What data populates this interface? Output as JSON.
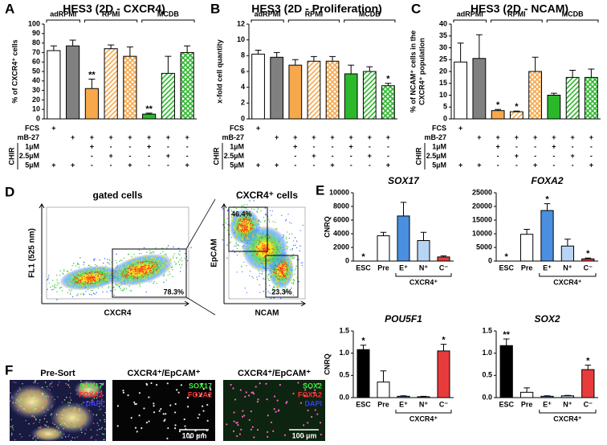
{
  "panel_labels": [
    "A",
    "B",
    "C",
    "D",
    "E",
    "F"
  ],
  "chart_data": [
    {
      "type": "bar",
      "title": "HES3 (2D - CXCR4)",
      "ylabel": [
        "% of CXCR4⁺ cells"
      ],
      "categories": [
        null,
        null,
        null,
        null,
        null,
        null,
        null,
        null
      ],
      "values": [
        72,
        77,
        32,
        74,
        66,
        5,
        48,
        70
      ],
      "errors": [
        5,
        6,
        10,
        4,
        10,
        1,
        18,
        7
      ],
      "significance": [
        null,
        null,
        "**",
        null,
        null,
        "**",
        null,
        null
      ],
      "colors": [
        "#ffffff",
        "#808080",
        "#f7a84a",
        "#f7a84a",
        "#f7a84a",
        "#2bb82b",
        "#2bb82b",
        "#2bb82b"
      ],
      "hatch": [
        null,
        null,
        null,
        "diagonal",
        "cross",
        null,
        "diagonal",
        "cross"
      ],
      "ylim": [
        0,
        100
      ],
      "yticks": [
        0,
        10,
        20,
        30,
        40,
        50,
        60,
        70,
        80,
        90,
        100
      ],
      "groups": [
        {
          "name": "adRPMI",
          "count": 2
        },
        {
          "name": "RPMI",
          "count": 3
        },
        {
          "name": "MCDB",
          "count": 3
        }
      ],
      "conditions": {
        "row_labels": [
          "FCS",
          "mB-27",
          "1µM",
          "2.5µM",
          "5µM"
        ],
        "group_label": "CHIR",
        "rows": [
          [
            "+",
            null,
            null,
            null,
            null,
            null,
            null,
            null
          ],
          [
            null,
            "+",
            "+",
            "+",
            "+",
            "+",
            "+",
            "+"
          ],
          [
            null,
            null,
            "+",
            "-",
            "-",
            "+",
            "-",
            "-"
          ],
          [
            null,
            null,
            "-",
            "+",
            "-",
            "-",
            "+",
            "-"
          ],
          [
            "+",
            "+",
            "-",
            "-",
            "+",
            "-",
            "-",
            "+"
          ]
        ]
      }
    },
    {
      "type": "bar",
      "title": "HES3 (2D - Proliferation)",
      "ylabel": [
        "x-fold cell quantity"
      ],
      "categories": [
        null,
        null,
        null,
        null,
        null,
        null,
        null,
        null
      ],
      "values": [
        8.2,
        7.8,
        6.8,
        7.3,
        7.3,
        5.7,
        6.0,
        4.2
      ],
      "errors": [
        0.5,
        0.6,
        0.7,
        0.6,
        0.6,
        1.1,
        0.6,
        0.3
      ],
      "significance": [
        null,
        null,
        null,
        null,
        null,
        null,
        null,
        "*"
      ],
      "colors": [
        "#ffffff",
        "#808080",
        "#f7a84a",
        "#f7a84a",
        "#f7a84a",
        "#2bb82b",
        "#2bb82b",
        "#2bb82b"
      ],
      "hatch": [
        null,
        null,
        null,
        "diagonal",
        "cross",
        null,
        "diagonal",
        "cross"
      ],
      "ylim": [
        0,
        12
      ],
      "yticks": [
        0,
        2,
        4,
        6,
        8,
        10,
        12
      ],
      "groups": [
        {
          "name": "adRPMI",
          "count": 2
        },
        {
          "name": "RPMI",
          "count": 3
        },
        {
          "name": "MCDB",
          "count": 3
        }
      ],
      "conditions": {
        "row_labels": [
          "FCS",
          "mB-27",
          "1µM",
          "2.5µM",
          "5µM"
        ],
        "group_label": "CHIR",
        "rows": [
          [
            "+",
            null,
            null,
            null,
            null,
            null,
            null,
            null
          ],
          [
            null,
            "+",
            "+",
            "+",
            "+",
            "+",
            "+",
            "+"
          ],
          [
            null,
            null,
            "+",
            "-",
            "-",
            "+",
            "-",
            "-"
          ],
          [
            null,
            null,
            "-",
            "+",
            "-",
            "-",
            "+",
            "-"
          ],
          [
            "+",
            "+",
            "-",
            "-",
            "+",
            "-",
            "-",
            "+"
          ]
        ]
      }
    },
    {
      "type": "bar",
      "title": "HES3 (2D - NCAM)",
      "ylabel": [
        "% of NCAM⁺ cells in the",
        "CXCR4⁺ population"
      ],
      "categories": [
        null,
        null,
        null,
        null,
        null,
        null,
        null,
        null
      ],
      "values": [
        24,
        25.5,
        3.5,
        3,
        20,
        10,
        17.5,
        17.5
      ],
      "errors": [
        8,
        10,
        0.5,
        0.3,
        6,
        0.8,
        3,
        3.5
      ],
      "significance": [
        null,
        null,
        "*",
        "*",
        null,
        null,
        null,
        null
      ],
      "colors": [
        "#ffffff",
        "#808080",
        "#f7a84a",
        "#f7a84a",
        "#f7a84a",
        "#2bb82b",
        "#2bb82b",
        "#2bb82b"
      ],
      "hatch": [
        null,
        null,
        null,
        "diagonal",
        "cross",
        null,
        "diagonal",
        "cross"
      ],
      "ylim": [
        0,
        40
      ],
      "yticks": [
        0,
        5,
        10,
        15,
        20,
        25,
        30,
        35,
        40
      ],
      "groups": [
        {
          "name": "adRPMI",
          "count": 2
        },
        {
          "name": "RPMI",
          "count": 3
        },
        {
          "name": "MCDB",
          "count": 3
        }
      ],
      "conditions": {
        "row_labels": [
          "FCS",
          "mB-27",
          "1µM",
          "2.5µM",
          "5µM"
        ],
        "group_label": "CHIR",
        "rows": [
          [
            "+",
            null,
            null,
            null,
            null,
            null,
            null,
            null
          ],
          [
            null,
            "+",
            "+",
            "+",
            "+",
            "+",
            "+",
            "+"
          ],
          [
            null,
            null,
            "+",
            "-",
            "-",
            "+",
            "-",
            "-"
          ],
          [
            null,
            null,
            "-",
            "+",
            "-",
            "-",
            "+",
            "-"
          ],
          [
            "+",
            "+",
            "-",
            "-",
            "+",
            "-",
            "-",
            "+"
          ]
        ]
      }
    },
    {
      "type": "bar",
      "title": "SOX17",
      "ylabel": [
        "CNRQ"
      ],
      "categories": [
        "ESC",
        "Pre",
        "E⁺",
        "N⁺",
        "C⁻"
      ],
      "values": [
        0,
        3700,
        6600,
        3000,
        600
      ],
      "errors": [
        0,
        500,
        2000,
        1200,
        150
      ],
      "significance": [
        "*",
        null,
        null,
        null,
        null
      ],
      "colors": [
        "#000000",
        "#ffffff",
        "#4a8fe0",
        "#b8d4f4",
        "#e83c3c"
      ],
      "ylim": [
        0,
        10000
      ],
      "yticks": [
        0,
        2000,
        4000,
        6000,
        8000,
        10000
      ],
      "groups": [
        {
          "name": null,
          "count": 2
        },
        {
          "name": "CXCR4⁺",
          "count": 3
        }
      ]
    },
    {
      "type": "bar",
      "title": "FOXA2",
      "categories": [
        "ESC",
        "Pre",
        "E⁺",
        "N⁺",
        "C⁻"
      ],
      "values": [
        0,
        9800,
        18500,
        5500,
        800
      ],
      "errors": [
        0,
        1800,
        2500,
        2500,
        300
      ],
      "significance": [
        "*",
        null,
        "*",
        null,
        "*"
      ],
      "colors": [
        "#000000",
        "#ffffff",
        "#4a8fe0",
        "#b8d4f4",
        "#e83c3c"
      ],
      "ylim": [
        0,
        25000
      ],
      "yticks": [
        0,
        5000,
        10000,
        15000,
        20000,
        25000
      ],
      "groups": [
        {
          "name": null,
          "count": 2
        },
        {
          "name": "CXCR4⁺",
          "count": 3
        }
      ]
    },
    {
      "type": "bar",
      "title": "POU5F1",
      "ylabel": [
        "CNRQ"
      ],
      "categories": [
        "ESC",
        "Pre",
        "E⁺",
        "N⁺",
        "C⁻"
      ],
      "values": [
        1.08,
        0.35,
        0.03,
        0.02,
        1.05
      ],
      "errors": [
        0.1,
        0.25,
        0.01,
        0.01,
        0.15
      ],
      "significance": [
        "*",
        null,
        null,
        null,
        "*"
      ],
      "colors": [
        "#000000",
        "#ffffff",
        "#4a8fe0",
        "#b8d4f4",
        "#e83c3c"
      ],
      "ylim": [
        0,
        1.5
      ],
      "yticks": [
        {
          "value": 0,
          "label": "0.0"
        },
        0.5,
        {
          "value": 1,
          "label": "1.0"
        },
        1.5
      ],
      "groups": [
        {
          "name": null,
          "count": 2
        },
        {
          "name": "CXCR4⁺",
          "count": 3
        }
      ]
    },
    {
      "type": "bar",
      "title": "SOX2",
      "categories": [
        "ESC",
        "Pre",
        "E⁺",
        "N⁺",
        "C⁻"
      ],
      "values": [
        1.17,
        0.12,
        0.03,
        0.04,
        0.63
      ],
      "errors": [
        0.15,
        0.1,
        0.01,
        0.01,
        0.1
      ],
      "significance": [
        "**",
        null,
        null,
        null,
        "*"
      ],
      "colors": [
        "#000000",
        "#ffffff",
        "#4a8fe0",
        "#b8d4f4",
        "#e83c3c"
      ],
      "ylim": [
        0,
        1.5
      ],
      "yticks": [
        {
          "value": 0,
          "label": "0.0"
        },
        0.5,
        {
          "value": 1,
          "label": "1.0"
        },
        1.5
      ],
      "groups": [
        {
          "name": null,
          "count": 2
        },
        {
          "name": "CXCR4⁺",
          "count": 3
        }
      ]
    }
  ],
  "flow": [
    {
      "title": "gated cells",
      "xlabel": "CXCR4",
      "ylabel": "FL1 (525 nm)",
      "gates": [
        "78.3%"
      ]
    },
    {
      "title": "CXCR4⁺ cells",
      "xlabel": "NCAM",
      "ylabel": "EpCAM",
      "gates": [
        "46.4%",
        "23.3%"
      ]
    }
  ],
  "microscopy": {
    "stain_colors": [
      "#3cf03c",
      "#ff3030",
      "#3a3aff"
    ],
    "images": [
      {
        "title": "Pre-Sort",
        "stains": [
          "SOX17",
          "FOXA2",
          "DAPI"
        ]
      },
      {
        "title": "CXCR4⁺/EpCAM⁺",
        "stains": [
          "SOX17",
          "FOXA2"
        ],
        "scale_bar": "100 µm"
      },
      {
        "title": "CXCR4⁺/EpCAM⁺",
        "stains": [
          "SOX2",
          "FOXA2",
          "DAPI"
        ],
        "scale_bar": "100 µm"
      }
    ]
  }
}
